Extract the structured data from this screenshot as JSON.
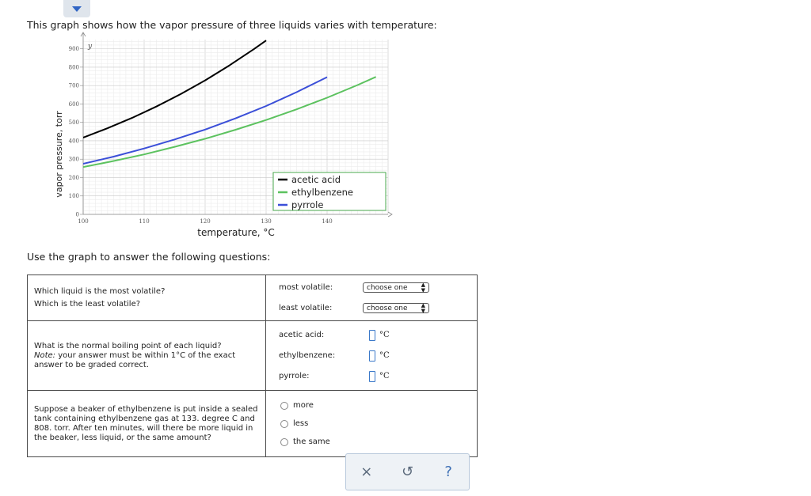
{
  "intro_text": "This graph shows how the vapor pressure of three liquids varies with temperature:",
  "question_lead": "Use the graph to answer the following questions:",
  "chart_data": {
    "type": "line",
    "xlabel": "temperature, °C",
    "ylabel": "vapor pressure, torr",
    "y_axis_symbol": "y",
    "xlim": [
      100,
      150
    ],
    "ylim": [
      0,
      950
    ],
    "x_ticks": [
      100,
      110,
      120,
      130,
      140
    ],
    "y_ticks": [
      0,
      100,
      200,
      300,
      400,
      500,
      600,
      700,
      800,
      900
    ],
    "grid": true,
    "legend_position": "bottom-right",
    "series": [
      {
        "name": "acetic acid",
        "color": "#000000",
        "x": [
          100,
          104,
          108,
          112,
          116,
          120,
          124,
          128,
          130
        ],
        "y": [
          417,
          468,
          524,
          586,
          654,
          728,
          810,
          898,
          945
        ]
      },
      {
        "name": "ethylbenzene",
        "color": "#5cc25f",
        "x": [
          100,
          105,
          110,
          115,
          120,
          125,
          130,
          135,
          140,
          145,
          148
        ],
        "y": [
          257,
          290,
          326,
          367,
          411,
          460,
          513,
          571,
          634,
          703,
          747
        ]
      },
      {
        "name": "pyrrole",
        "color": "#3b4fd8",
        "x": [
          100,
          105,
          110,
          115,
          120,
          125,
          130,
          135,
          140
        ],
        "y": [
          275,
          314,
          358,
          407,
          461,
          522,
          589,
          664,
          746
        ]
      }
    ]
  },
  "table": {
    "row1": {
      "question_1": "Which liquid is the most volatile?",
      "question_2": "Which is the least volatile?",
      "most_label": "most volatile:",
      "least_label": "least volatile:",
      "select_value": "choose one"
    },
    "row2": {
      "question": "What is the normal boiling point of each liquid?",
      "note_label": "Note:",
      "note_text": " your answer must be within 1°C of the exact answer to be graded correct.",
      "acetic_label": "acetic acid:",
      "ethyl_label": "ethylbenzene:",
      "pyrrole_label": "pyrrole:",
      "unit": "°C"
    },
    "row3": {
      "question": "Suppose a beaker of ethylbenzene is put inside a sealed tank containing ethylbenzene gas at 133. degree C and 808. torr. After ten minutes, will there be more liquid in the beaker, less liquid, or the same amount?",
      "options": [
        "more",
        "less",
        "the same"
      ]
    }
  },
  "toolbar": {
    "close_icon": "×",
    "undo_icon": "↺",
    "help_icon": "?"
  }
}
